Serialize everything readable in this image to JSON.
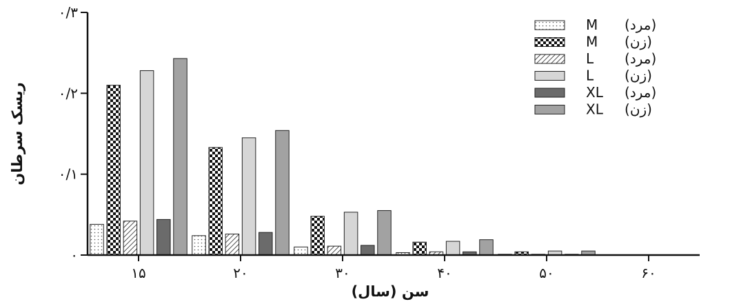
{
  "chart_data": {
    "type": "bar",
    "xlabel": "سن (سال)",
    "ylabel": "ریسک سرطان",
    "ylim": [
      0,
      0.3
    ],
    "y_ticks": [
      {
        "value": 0,
        "label": "۰"
      },
      {
        "value": 0.1,
        "label": "۰/۱"
      },
      {
        "value": 0.2,
        "label": "۰/۲"
      },
      {
        "value": 0.3,
        "label": "۰/۳"
      }
    ],
    "categories": [
      "۱۵",
      "۲۰",
      "۳۰",
      "۴۰",
      "۵۰",
      "۶۰"
    ],
    "legend_position": "top-right",
    "series": [
      {
        "name": "M",
        "gender": "(مرد)",
        "pattern": "dots",
        "color": "#ffffff",
        "values": [
          0.038,
          0.024,
          0.01,
          0.003,
          0.001,
          0
        ]
      },
      {
        "name": "M",
        "gender": "(زن)",
        "pattern": "checker",
        "color": "#111111",
        "values": [
          0.21,
          0.133,
          0.048,
          0.016,
          0.004,
          0
        ]
      },
      {
        "name": "L",
        "gender": "(مرد)",
        "pattern": "hatch",
        "color": "#ffffff",
        "values": [
          0.042,
          0.026,
          0.011,
          0.004,
          0.001,
          0
        ]
      },
      {
        "name": "L",
        "gender": "(زن)",
        "pattern": "solid",
        "color": "#d6d6d6",
        "values": [
          0.228,
          0.145,
          0.053,
          0.017,
          0.005,
          0
        ]
      },
      {
        "name": "XL",
        "gender": "(مرد)",
        "pattern": "solid",
        "color": "#6b6b6b",
        "values": [
          0.044,
          0.028,
          0.012,
          0.004,
          0.001,
          0
        ]
      },
      {
        "name": "XL",
        "gender": "(زن)",
        "pattern": "solid",
        "color": "#a2a2a2",
        "values": [
          0.243,
          0.154,
          0.055,
          0.019,
          0.005,
          0
        ]
      }
    ]
  }
}
